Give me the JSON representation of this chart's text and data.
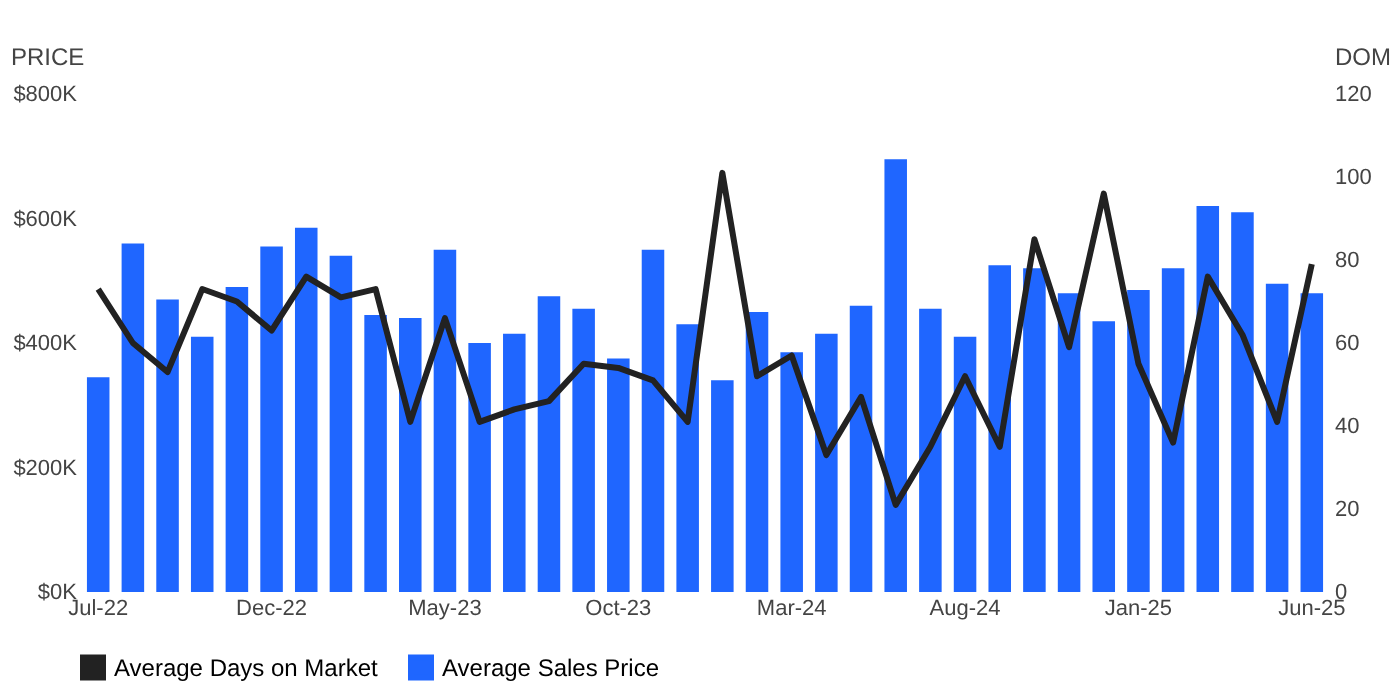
{
  "chart_data": {
    "type": "bar",
    "ylabel": "PRICE",
    "y2label": "DOM",
    "categories": [
      "Jul-22",
      null,
      null,
      null,
      null,
      "Dec-22",
      null,
      null,
      null,
      null,
      "May-23",
      null,
      null,
      null,
      null,
      "Oct-23",
      null,
      null,
      null,
      null,
      "Mar-24",
      null,
      null,
      null,
      null,
      "Aug-24",
      null,
      null,
      null,
      null,
      "Jan-25",
      null,
      null,
      null,
      null,
      "Jun-25"
    ],
    "series": [
      {
        "name": "Average Days on Market",
        "type": "line",
        "axis": "y2",
        "color": "#222222",
        "values": [
          73,
          60,
          53,
          73,
          70,
          63,
          76,
          71,
          73,
          41,
          66,
          41,
          44,
          46,
          55,
          54,
          51,
          41,
          101,
          52,
          57,
          33,
          47,
          21,
          35,
          52,
          35,
          85,
          59,
          96,
          55,
          36,
          76,
          62,
          41,
          79
        ]
      },
      {
        "name": "Average Sales Price",
        "color": "#1f66ff",
        "values": [
          345000,
          560000,
          470000,
          410000,
          490000,
          555000,
          585000,
          540000,
          445000,
          440000,
          550000,
          400000,
          415000,
          475000,
          455000,
          375000,
          550000,
          430000,
          340000,
          450000,
          385000,
          415000,
          460000,
          695000,
          455000,
          410000,
          525000,
          520000,
          480000,
          435000,
          485000,
          520000,
          620000,
          610000,
          495000,
          480000
        ]
      }
    ],
    "ylim": [
      0,
      800000
    ],
    "yticks": [
      {
        "value": 0,
        "label": "$0K"
      },
      {
        "value": 200000,
        "label": "$200K"
      },
      {
        "value": 400000,
        "label": "$400K"
      },
      {
        "value": 600000,
        "label": "$600K"
      },
      {
        "value": 800000,
        "label": "$800K"
      }
    ],
    "y2lim": [
      0,
      120
    ],
    "y2ticks": [
      0,
      20,
      40,
      60,
      80,
      100,
      120
    ],
    "grid": false,
    "legend": "bottom",
    "marker": "none",
    "line_style": "solid"
  }
}
